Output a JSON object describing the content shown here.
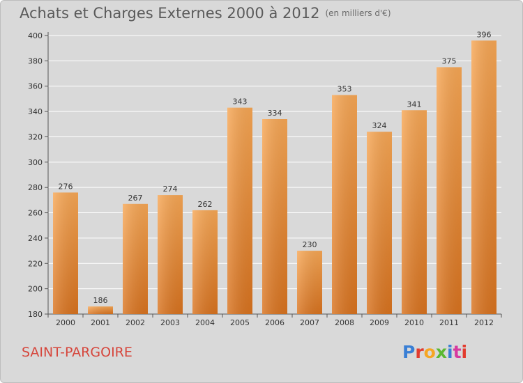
{
  "header": {
    "title": "Achats et Charges Externes 2000 à 2012",
    "subtitle": "(en milliers d'€)"
  },
  "footer": {
    "commune": "SAINT-PARGOIRE",
    "logo": "Proxiti",
    "logo_colors": [
      "#3a7fd5",
      "#e23b2e",
      "#f5a623",
      "#5bb832",
      "#3a7fd5",
      "#d63aa0",
      "#e23b2e"
    ]
  },
  "colors": {
    "bar_top": "#f7a755",
    "bar_bottom": "#d9731f",
    "plot_background": "#d9d9d9",
    "gridline": "#ffffff",
    "axis_text": "#333333"
  },
  "chart_data": {
    "type": "bar",
    "title": "Achats et Charges Externes 2000 à 2012",
    "subtitle": "(en milliers d'€)",
    "categories": [
      "2000",
      "2001",
      "2002",
      "2003",
      "2004",
      "2005",
      "2006",
      "2007",
      "2008",
      "2009",
      "2010",
      "2011",
      "2012"
    ],
    "values": [
      276,
      186,
      267,
      274,
      262,
      343,
      334,
      230,
      353,
      324,
      341,
      375,
      396
    ],
    "ylim": [
      180,
      400
    ],
    "yticks": [
      180,
      200,
      220,
      240,
      260,
      280,
      300,
      320,
      340,
      360,
      380,
      400
    ],
    "grid": true,
    "data_labels": true
  }
}
